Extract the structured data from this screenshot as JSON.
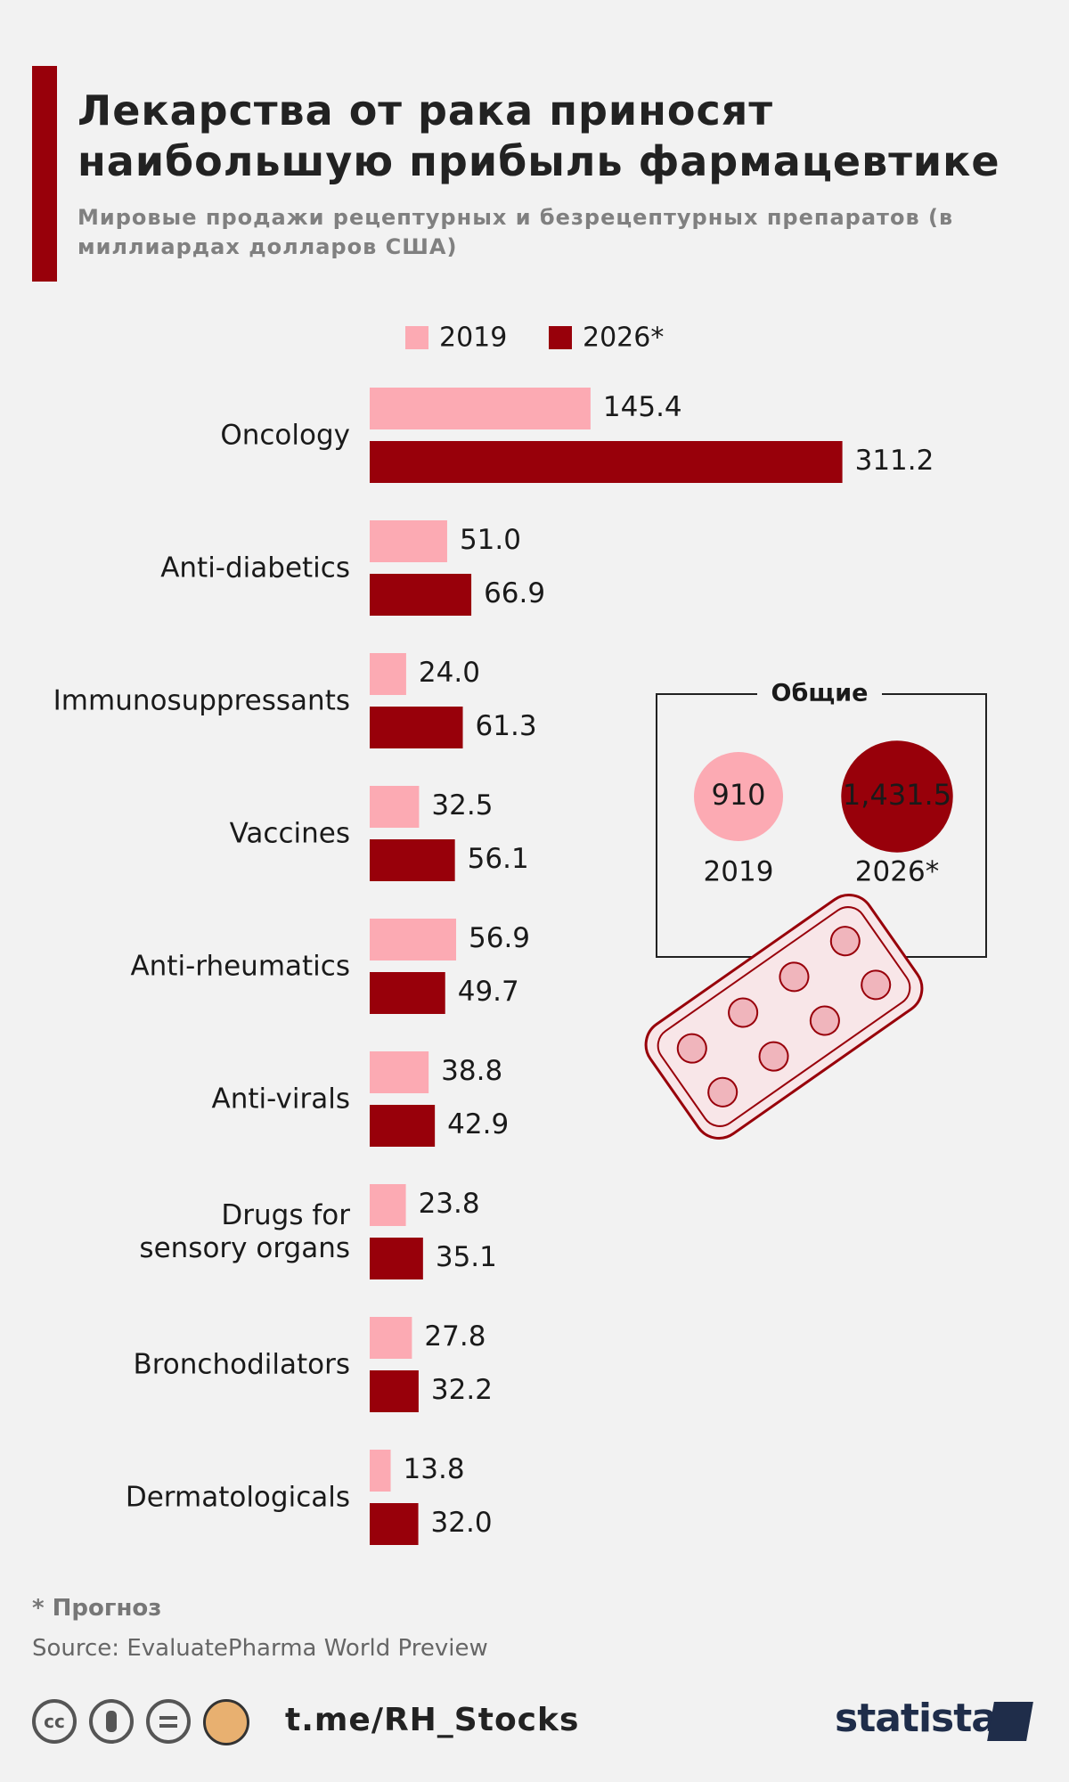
{
  "chart_data": {
    "type": "bar",
    "orientation": "horizontal",
    "title": "Лекарства от рака приносят наибольшую прибыль фармацевтике",
    "subtitle": "Мировые продажи рецептурных и безрецептурных препаратов (в миллиардах долларов США)",
    "categories": [
      "Oncology",
      "Anti-diabetics",
      "Immunosuppressants",
      "Vaccines",
      "Anti-rheumatics",
      "Anti-virals",
      "Drugs for\nsensory organs",
      "Bronchodilators",
      "Dermatologicals"
    ],
    "series": [
      {
        "name": "2019",
        "color": "#fcaab3",
        "values": [
          145.4,
          51.0,
          24.0,
          32.5,
          56.9,
          38.8,
          23.8,
          27.8,
          13.8
        ],
        "value_labels": [
          "145.4",
          "51.0",
          "24.0",
          "32.5",
          "56.9",
          "38.8",
          "23.8",
          "27.8",
          "13.8"
        ]
      },
      {
        "name": "2026*",
        "color": "#98000a",
        "values": [
          311.2,
          66.9,
          61.3,
          56.1,
          49.7,
          42.9,
          35.1,
          32.2,
          32.0
        ],
        "value_labels": [
          "311.2",
          "66.9",
          "61.3",
          "56.1",
          "49.7",
          "42.9",
          "35.1",
          "32.2",
          "32.0"
        ]
      }
    ],
    "totals": {
      "title": "Общие",
      "labels": [
        "2019",
        "2026*"
      ],
      "values": [
        910,
        1431.5
      ],
      "value_labels": [
        "910",
        "1,431.5"
      ]
    },
    "footnote": "* Прогноз",
    "source": "Source: EvaluatePharma World Preview",
    "channel": "t.me/RH_Stocks",
    "brand": "statista"
  }
}
